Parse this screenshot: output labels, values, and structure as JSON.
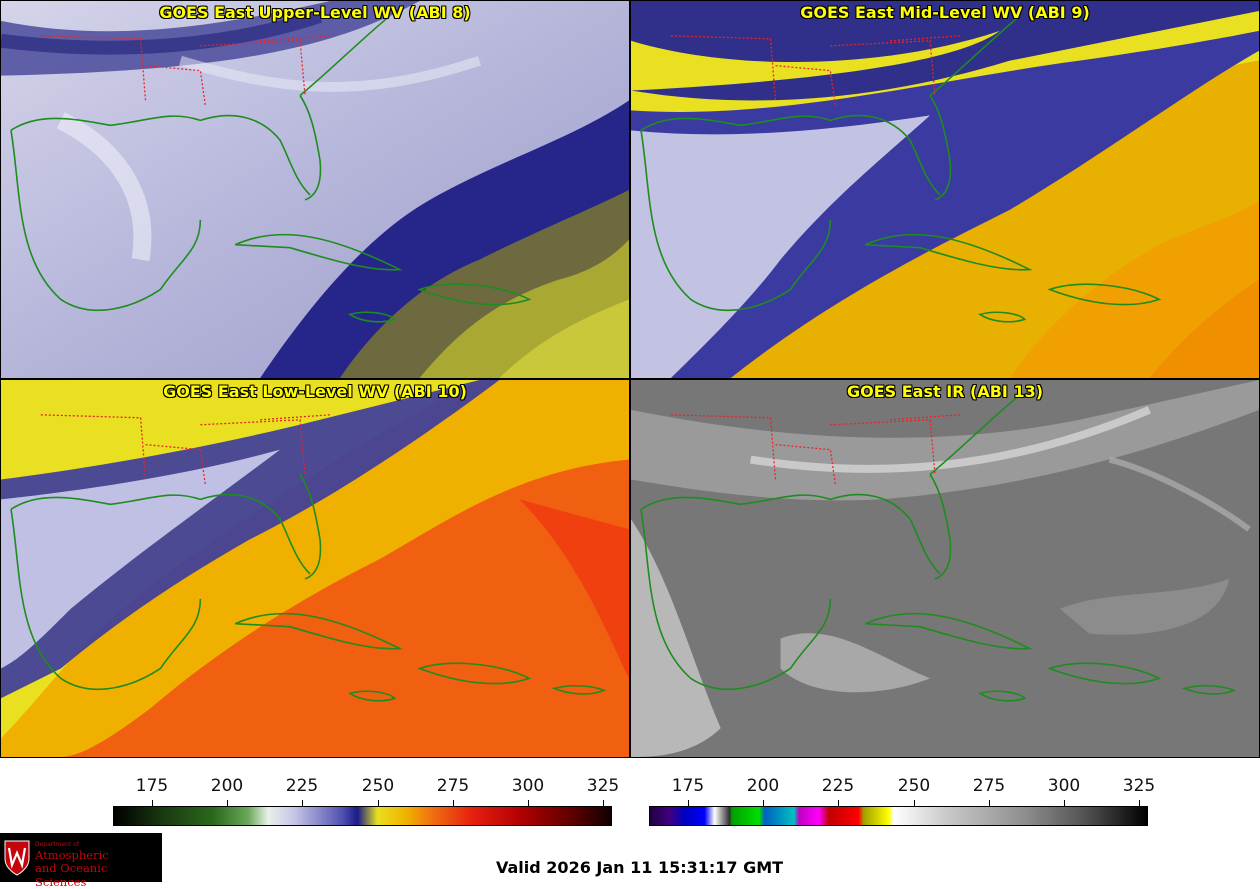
{
  "panels": [
    {
      "title": "GOES East Upper-Level WV (ABI 8)",
      "band": "ABI 8",
      "palette": "wv"
    },
    {
      "title": "GOES East Mid-Level WV (ABI 9)",
      "band": "ABI 9",
      "palette": "wv"
    },
    {
      "title": "GOES East Low-Level WV (ABI 10)",
      "band": "ABI 10",
      "palette": "wv"
    },
    {
      "title": "GOES East IR (ABI 13)",
      "band": "ABI 13",
      "palette": "ir"
    }
  ],
  "colorbars": {
    "wv": {
      "ticks": [
        "175",
        "200",
        "225",
        "250",
        "275",
        "300",
        "325"
      ],
      "tick_values": [
        175,
        200,
        225,
        250,
        275,
        300,
        325
      ],
      "range": [
        162,
        328
      ]
    },
    "ir": {
      "ticks": [
        "175",
        "200",
        "225",
        "250",
        "275",
        "300",
        "325"
      ],
      "tick_values": [
        175,
        200,
        225,
        250,
        275,
        300,
        325
      ],
      "range": [
        162,
        328
      ]
    }
  },
  "colors": {
    "coastline": "#1e8c1e",
    "state_borders": "#e8242a",
    "title_text": "#ffff00"
  },
  "logo": {
    "dept": "Department of",
    "line1": "Atmospheric",
    "line2": "and Oceanic Sciences"
  },
  "valid_time": "Valid 2026 Jan 11 15:31:17 GMT"
}
